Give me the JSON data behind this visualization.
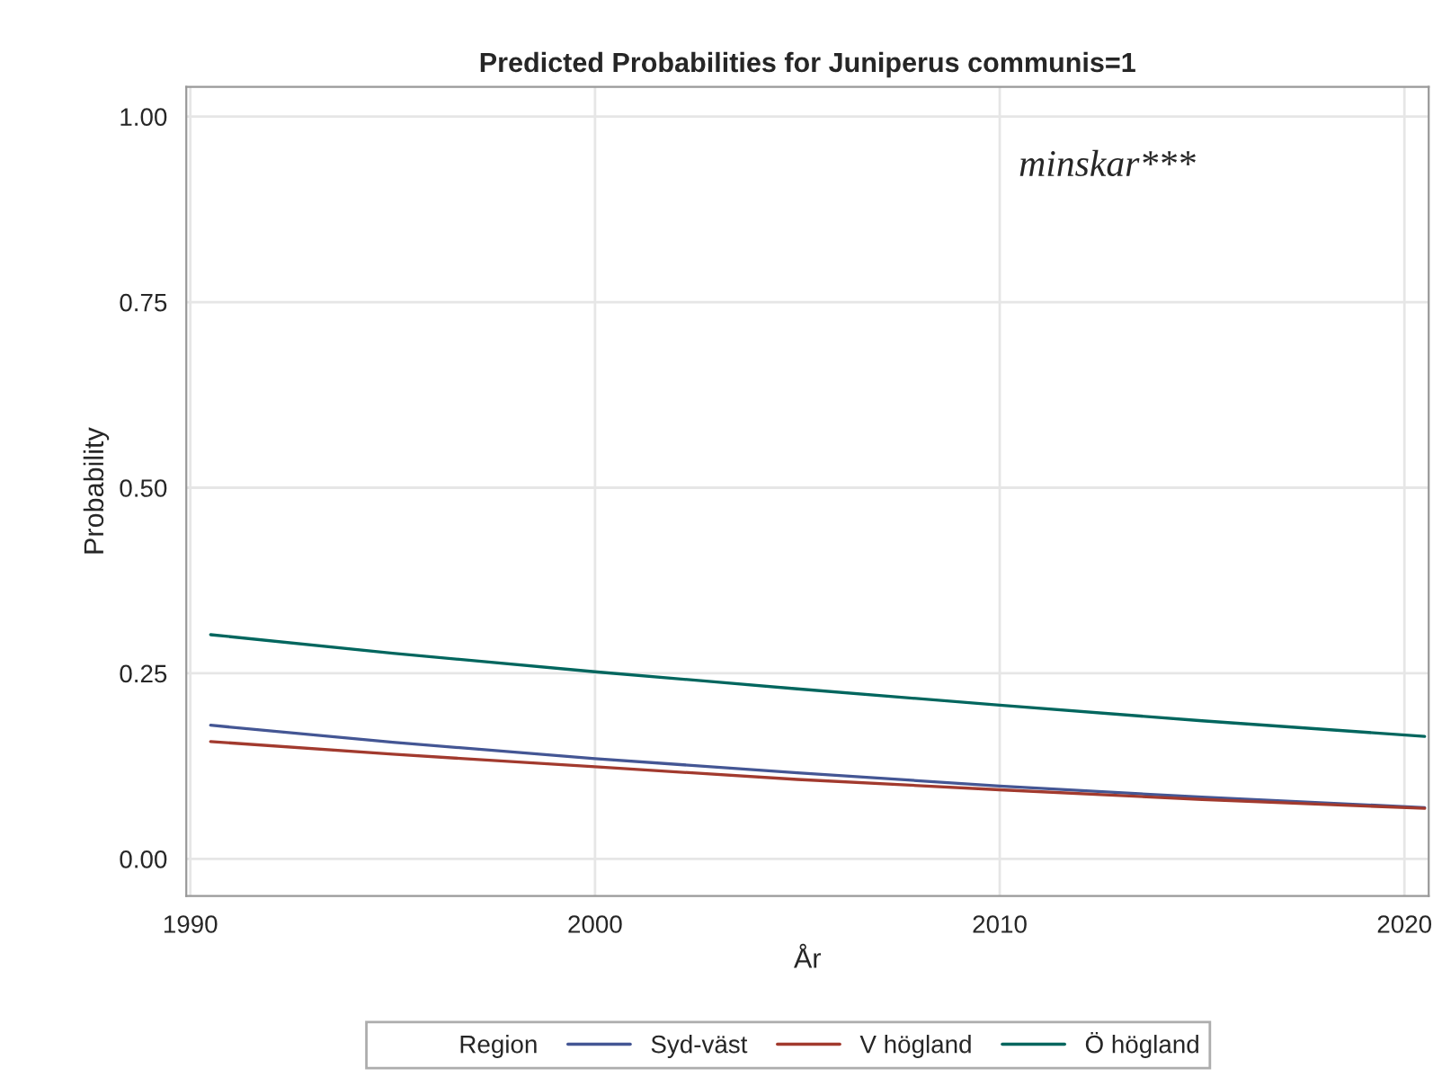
{
  "chart_data": {
    "type": "line",
    "title": "Predicted Probabilities for Juniperus communis=1",
    "xlabel": "År",
    "ylabel": "Probability",
    "legend_title": "Region",
    "x": [
      1990.5,
      1995,
      2000,
      2005,
      2010,
      2015,
      2020.5
    ],
    "series": [
      {
        "name": "Syd-väst",
        "color": "#445694",
        "values": [
          0.18,
          0.157,
          0.135,
          0.116,
          0.098,
          0.083,
          0.069
        ]
      },
      {
        "name": "V högland",
        "color": "#a23a2e",
        "values": [
          0.158,
          0.141,
          0.124,
          0.107,
          0.093,
          0.08,
          0.068
        ]
      },
      {
        "name": "Ö högland",
        "color": "#01665e",
        "values": [
          0.302,
          0.277,
          0.252,
          0.229,
          0.207,
          0.186,
          0.165
        ]
      }
    ],
    "xlim": [
      1989.9,
      2020.6
    ],
    "ylim": [
      -0.05,
      1.04
    ],
    "xticks": [
      1990,
      2000,
      2010,
      2020
    ],
    "yticks": [
      {
        "value": 0,
        "label": "0.00"
      },
      {
        "value": 0.25,
        "label": "0.25"
      },
      {
        "value": 0.5,
        "label": "0.50"
      },
      {
        "value": 0.75,
        "label": "0.75"
      },
      {
        "value": 1,
        "label": "1.00"
      }
    ],
    "grid": true,
    "legend": "bottom",
    "annotations": [
      "minskar***"
    ]
  }
}
